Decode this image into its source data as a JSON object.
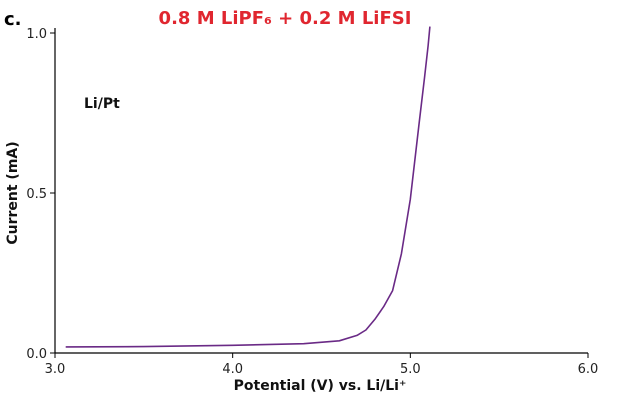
{
  "panel_label": "c.",
  "chart_data": {
    "type": "line",
    "title": "0.8 M LiPF₆ + 0.2 M LiFSI",
    "title_color": "#e0262f",
    "annotation": "Li/Pt",
    "xlabel": "Potential (V) vs. Li/Li⁺",
    "ylabel": "Current (mA)",
    "xlim": [
      3.0,
      6.0
    ],
    "ylim": [
      0.0,
      1.0
    ],
    "xticks": [
      3.0,
      4.0,
      5.0,
      6.0
    ],
    "xtick_labels": [
      "3.0",
      "4.0",
      "5.0",
      "6.0"
    ],
    "yticks": [
      0.0,
      0.5,
      1.0
    ],
    "ytick_labels": [
      "0.0",
      "0.5",
      "1.0"
    ],
    "grid": false,
    "series": [
      {
        "color": "#6a2a86",
        "x": [
          3.06,
          3.5,
          4.0,
          4.4,
          4.6,
          4.7,
          4.75,
          4.8,
          4.85,
          4.9,
          4.95,
          5.0,
          5.05,
          5.08,
          5.1,
          5.11
        ],
        "y": [
          0.019,
          0.02,
          0.024,
          0.029,
          0.038,
          0.055,
          0.072,
          0.105,
          0.145,
          0.195,
          0.31,
          0.48,
          0.72,
          0.86,
          0.96,
          1.02
        ]
      }
    ]
  }
}
